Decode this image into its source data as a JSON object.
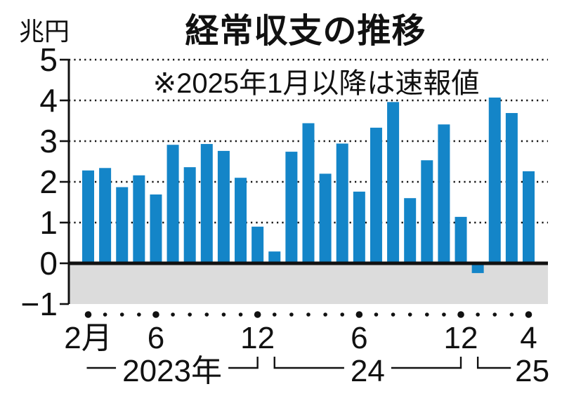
{
  "figure": {
    "title": "経常収支の推移",
    "unit_label": "兆円",
    "note": "※2025年1月以降は速報値"
  },
  "colors": {
    "bar": "#1485c8",
    "band": "#dcdcdc",
    "ink": "#111111",
    "background": "#ffffff"
  },
  "chart_data": {
    "type": "bar",
    "title": "経常収支の推移",
    "unit": "兆円",
    "note": "※2025年1月以降は速報値",
    "x": [
      "2023-02",
      "2023-03",
      "2023-04",
      "2023-05",
      "2023-06",
      "2023-07",
      "2023-08",
      "2023-09",
      "2023-10",
      "2023-11",
      "2023-12",
      "2024-01",
      "2024-02",
      "2024-03",
      "2024-04",
      "2024-05",
      "2024-06",
      "2024-07",
      "2024-08",
      "2024-09",
      "2024-10",
      "2024-11",
      "2024-12",
      "2025-01",
      "2025-02",
      "2025-03",
      "2025-04"
    ],
    "values": [
      2.28,
      2.34,
      1.87,
      2.16,
      1.69,
      2.91,
      2.36,
      2.93,
      2.76,
      2.1,
      0.9,
      0.29,
      2.74,
      3.44,
      2.2,
      2.94,
      1.76,
      3.33,
      3.96,
      1.6,
      2.53,
      3.41,
      1.14,
      -0.24,
      4.07,
      3.69,
      2.26
    ],
    "ylim": [
      -1,
      5
    ],
    "grid": "dotted horizontal gridlines at integers 1..5, solid heavy zero line, shaded band below zero",
    "legend": "none",
    "y_ticks": [
      {
        "value": 5,
        "label": "5"
      },
      {
        "value": 4,
        "label": "4"
      },
      {
        "value": 3,
        "label": "3"
      },
      {
        "value": 2,
        "label": "2"
      },
      {
        "value": 1,
        "label": "1"
      },
      {
        "value": 0,
        "label": "0"
      },
      {
        "value": -1,
        "label": "−1"
      }
    ],
    "gridline_values": [
      5,
      4,
      3,
      2,
      1
    ],
    "month_tick_labels": [
      {
        "month_index": 0,
        "label": "2月"
      },
      {
        "month_index": 4,
        "label": "6"
      },
      {
        "month_index": 10,
        "label": "12"
      },
      {
        "month_index": 16,
        "label": "6"
      },
      {
        "month_index": 22,
        "label": "12"
      },
      {
        "month_index": 26,
        "label": "4"
      }
    ],
    "major_dot_month_indices": [
      0,
      4,
      10,
      16,
      22,
      26
    ],
    "year_groups": [
      {
        "label": "2023年",
        "from_index": 0,
        "to_index": 10
      },
      {
        "label": "24",
        "from_index": 11,
        "to_index": 22
      },
      {
        "label": "25",
        "from_index": 23,
        "to_index": 26
      }
    ]
  }
}
